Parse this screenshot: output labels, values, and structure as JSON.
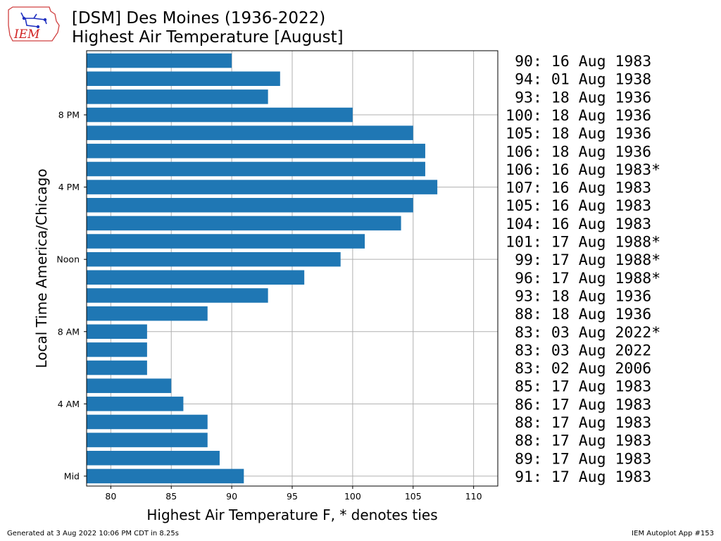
{
  "header": {
    "logo_text": "IEM",
    "title_line1": "[DSM] Des Moines (1936-2022)",
    "title_line2": "Highest Air Temperature [August]"
  },
  "footer": {
    "generated": "Generated at 3 Aug 2022 10:06 PM CDT in 8.25s",
    "app": "IEM Autoplot App #153"
  },
  "colors": {
    "bar": "#1f77b4",
    "grid": "#b0b0b0"
  },
  "chart_data": {
    "type": "bar",
    "orientation": "horizontal",
    "xlabel": "Highest Air Temperature F, * denotes ties",
    "ylabel": "Local Time America/Chicago",
    "xlim": [
      78,
      112
    ],
    "xticks": [
      80,
      85,
      90,
      95,
      100,
      105,
      110
    ],
    "ytick_labels": [
      {
        "hour": 0,
        "label": "Mid"
      },
      {
        "hour": 4,
        "label": "4 AM"
      },
      {
        "hour": 8,
        "label": "8 AM"
      },
      {
        "hour": 12,
        "label": "Noon"
      },
      {
        "hour": 16,
        "label": "4 PM"
      },
      {
        "hour": 20,
        "label": "8 PM"
      }
    ],
    "grid": true,
    "hours": [
      0,
      1,
      2,
      3,
      4,
      5,
      6,
      7,
      8,
      9,
      10,
      11,
      12,
      13,
      14,
      15,
      16,
      17,
      18,
      19,
      20,
      21,
      22,
      23
    ],
    "values": [
      91,
      89,
      88,
      88,
      86,
      85,
      83,
      83,
      83,
      88,
      93,
      96,
      99,
      101,
      104,
      105,
      107,
      106,
      106,
      105,
      100,
      93,
      94,
      90
    ],
    "annotations": [
      "91: 17 Aug 1983",
      "89: 17 Aug 1983",
      "88: 17 Aug 1983",
      "88: 17 Aug 1983",
      "86: 17 Aug 1983",
      "85: 17 Aug 1983",
      "83: 02 Aug 2006",
      "83: 03 Aug 2022",
      "83: 03 Aug 2022*",
      "88: 18 Aug 1936",
      "93: 18 Aug 1936",
      "96: 17 Aug 1988*",
      "99: 17 Aug 1988*",
      "101: 17 Aug 1988*",
      "104: 16 Aug 1983",
      "105: 16 Aug 1983",
      "107: 16 Aug 1983",
      "106: 16 Aug 1983*",
      "106: 18 Aug 1936",
      "105: 18 Aug 1936",
      "100: 18 Aug 1936",
      "93: 18 Aug 1936",
      "94: 01 Aug 1938",
      "90: 16 Aug 1983"
    ]
  }
}
